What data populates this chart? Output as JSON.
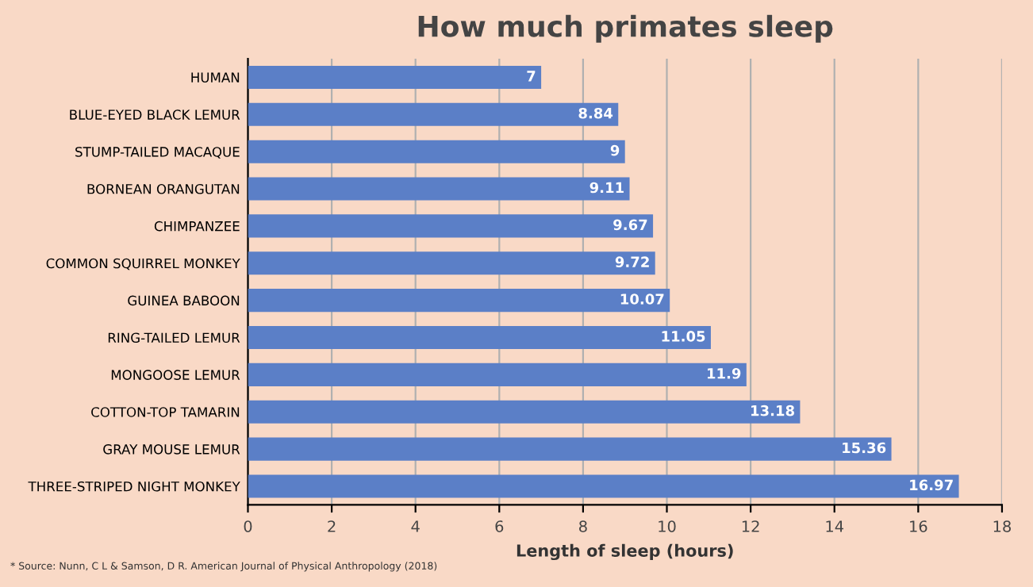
{
  "chart_data": {
    "type": "bar",
    "orientation": "horizontal",
    "title": "How much primates sleep",
    "xlabel": "Length of sleep (hours)",
    "categories": [
      "HUMAN",
      "BLUE-EYED BLACK LEMUR",
      "STUMP-TAILED MACAQUE",
      "BORNEAN ORANGUTAN",
      "CHIMPANZEE",
      "COMMON SQUIRREL MONKEY",
      "GUINEA BABOON",
      "RING-TAILED LEMUR",
      "MONGOOSE LEMUR",
      "COTTON-TOP TAMARIN",
      "GRAY MOUSE LEMUR",
      "THREE-STRIPED NIGHT MONKEY"
    ],
    "values": [
      7,
      8.84,
      9,
      9.11,
      9.67,
      9.72,
      10.07,
      11.05,
      11.9,
      13.18,
      15.36,
      16.97
    ],
    "color": "#5b7fc7",
    "data_labels": true,
    "xlim": [
      0,
      18
    ],
    "xticks": [
      0,
      2,
      4,
      6,
      8,
      10,
      12,
      14,
      16,
      18
    ],
    "grid": "x",
    "annotations": [
      "* Source: Nunn, C L & Samson, D R. American Journal of Physical Anthropology (2018)"
    ]
  }
}
